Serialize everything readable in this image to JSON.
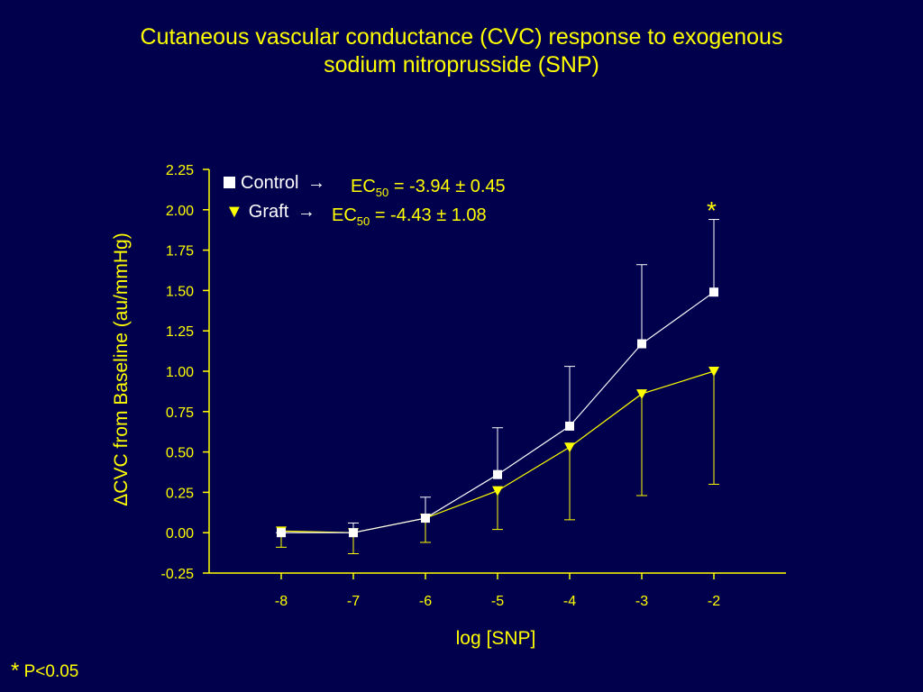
{
  "title": {
    "line1": "Cutaneous vascular conductance (CVC) response to exogenous",
    "line2": "sodium nitroprusside (SNP)"
  },
  "legend": {
    "control": {
      "label": "Control",
      "arrow": "→",
      "ec_prefix": "EC",
      "ec_sub": "50",
      "ec_value": " = -3.94 ± 0.45"
    },
    "graft": {
      "label": "Graft",
      "arrow": "→",
      "ec_prefix": "EC",
      "ec_sub": "50",
      "ec_value": " = -4.43 ± 1.08"
    }
  },
  "significance_marker": "*",
  "footnote": {
    "star": "*",
    "text": " P<0.05"
  },
  "colors": {
    "background": "#00004d",
    "axis": "#ffff00",
    "control": "#ffffff",
    "graft": "#ffff00"
  },
  "chart_data": {
    "type": "line",
    "xlabel": "log [SNP]",
    "ylabel": "ΔCVC from Baseline (au/mmHg)",
    "x": [
      -8,
      -7,
      -6,
      -5,
      -4,
      -3,
      -2
    ],
    "xticks": [
      "-8",
      "-7",
      "-6",
      "-5",
      "-4",
      "-3",
      "-2"
    ],
    "xlim": [
      -9,
      -1
    ],
    "ylim": [
      -0.25,
      2.25
    ],
    "yticks": [
      "2.25",
      "2.00",
      "1.75",
      "1.50",
      "1.25",
      "1.00",
      "0.75",
      "0.50",
      "0.25",
      "0.00",
      "-0.25"
    ],
    "grid": false,
    "legend_position": "top-left",
    "series": [
      {
        "name": "Control",
        "marker": "square",
        "color": "#ffffff",
        "values": [
          0.0,
          0.0,
          0.09,
          0.36,
          0.66,
          1.17,
          1.49
        ],
        "error_upper": [
          0.0,
          0.06,
          0.22,
          0.65,
          1.03,
          1.66,
          1.94
        ],
        "error_lower": null
      },
      {
        "name": "Graft",
        "marker": "triangle-down",
        "color": "#ffff00",
        "values": [
          0.01,
          0.0,
          0.09,
          0.26,
          0.53,
          0.86,
          1.0
        ],
        "error_upper": null,
        "error_lower": [
          -0.09,
          -0.13,
          -0.06,
          0.02,
          0.08,
          0.23,
          0.3
        ]
      }
    ],
    "annotations": [
      {
        "text": "*",
        "x": -2
      }
    ]
  }
}
